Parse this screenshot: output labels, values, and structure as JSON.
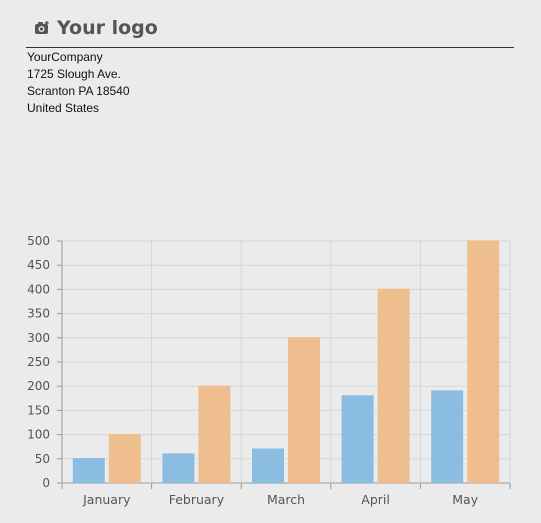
{
  "logo": {
    "text": "Your logo",
    "icon": "camera-icon"
  },
  "address": {
    "lines": [
      "YourCompany",
      "1725 Slough Ave.",
      "Scranton PA 18540",
      "United States"
    ]
  },
  "chart_data": {
    "type": "bar",
    "categories": [
      "January",
      "February",
      "March",
      "April",
      "May"
    ],
    "series": [
      {
        "values": [
          50,
          60,
          70,
          180,
          190
        ],
        "color": "#8bbde3"
      },
      {
        "values": [
          100,
          200,
          300,
          400,
          500
        ],
        "color": "#efbe8f"
      }
    ],
    "yticks": [
      0,
      50,
      100,
      150,
      200,
      250,
      300,
      350,
      400,
      450,
      500
    ],
    "ylim": [
      0,
      500
    ],
    "grid": true,
    "title": "",
    "xlabel": "",
    "ylabel": ""
  }
}
